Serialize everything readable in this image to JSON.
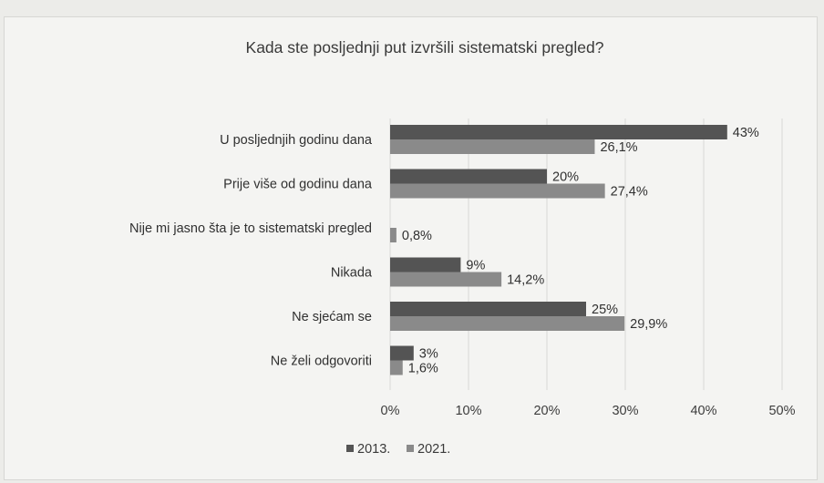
{
  "chart_data": {
    "type": "bar",
    "orientation": "horizontal",
    "title": "Kada ste posljednji put izvršili sistematski pregled?",
    "caption": "",
    "categories": [
      "U posljednjih godinu dana",
      "Prije više od godinu dana",
      "Nije mi jasno šta je to sistematski pregled",
      "Nikada",
      "Ne sjećam se",
      "Ne želi odgovoriti"
    ],
    "series": [
      {
        "name": "2013.",
        "color": "#545454",
        "values": [
          43,
          20,
          null,
          9,
          25,
          3
        ],
        "labels": [
          "43%",
          "20%",
          "",
          "9%",
          "25%",
          "3%"
        ]
      },
      {
        "name": "2021.",
        "color": "#8a8a8a",
        "values": [
          26.1,
          27.4,
          0.8,
          14.2,
          29.9,
          1.6
        ],
        "labels": [
          "26,1%",
          "27,4%",
          "0,8%",
          "14,2%",
          "29,9%",
          "1,6%"
        ]
      }
    ],
    "xlim": [
      0,
      50
    ],
    "xticks": [
      "0%",
      "10%",
      "20%",
      "30%",
      "40%",
      "50%"
    ],
    "grid": true,
    "legend_position": "bottom"
  }
}
